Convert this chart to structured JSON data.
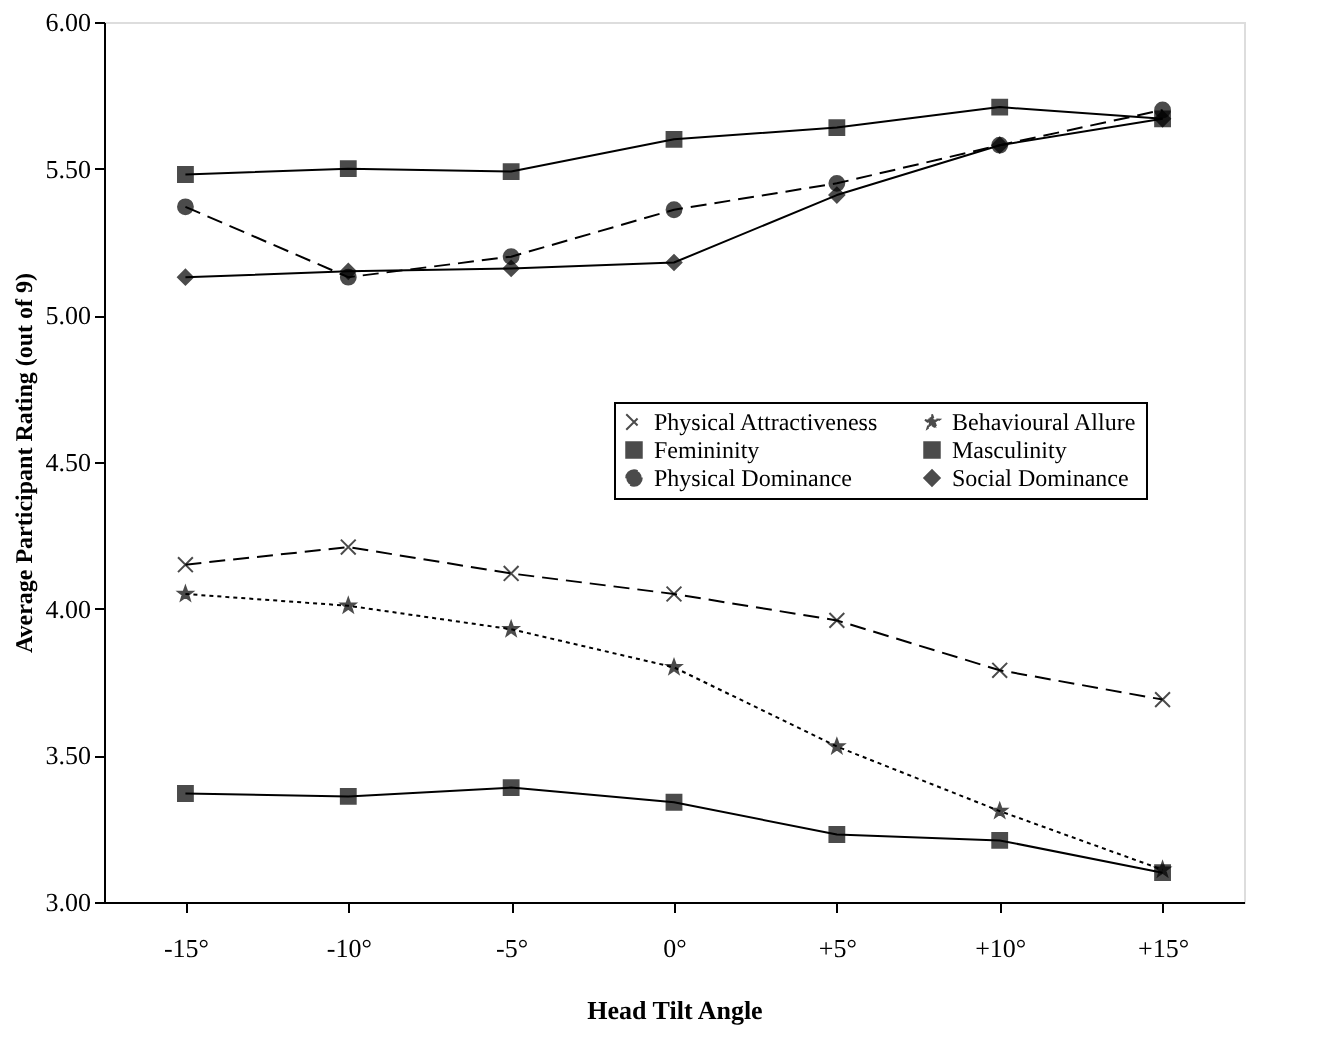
{
  "chart_data": {
    "type": "line",
    "xlabel": "Head Tilt Angle",
    "ylabel": "Average Participant Rating (out of 9)",
    "categories": [
      "-15°",
      "-10°",
      "-5°",
      "0°",
      "+5°",
      "+10°",
      "+15°"
    ],
    "ylim": [
      3.0,
      6.0
    ],
    "yticks": [
      {
        "value": 3.0,
        "label": "3.00"
      },
      {
        "value": 3.5,
        "label": "3.50"
      },
      {
        "value": 4.0,
        "label": "4.00"
      },
      {
        "value": 4.5,
        "label": "4.50"
      },
      {
        "value": 5.0,
        "label": "5.00"
      },
      {
        "value": 5.5,
        "label": "5.50"
      },
      {
        "value": 6.0,
        "label": "6.00"
      }
    ],
    "grid": false,
    "legend": "right",
    "series": [
      {
        "name": "Physical Attractiveness",
        "color": "#000000",
        "marker": "cross",
        "line_style": "dashed",
        "values": [
          4.15,
          4.21,
          4.12,
          4.05,
          3.96,
          3.79,
          3.69
        ]
      },
      {
        "name": "Behavioural Allure",
        "color": "#000000",
        "marker": "star",
        "line_style": "dotted",
        "values": [
          4.05,
          4.01,
          3.93,
          3.8,
          3.53,
          3.31,
          3.11
        ]
      },
      {
        "name": "Femininity",
        "color": "#000000",
        "marker": "square",
        "line_style": "solid",
        "values": [
          3.37,
          3.36,
          3.39,
          3.34,
          3.23,
          3.21,
          3.1
        ]
      },
      {
        "name": "Masculinity",
        "color": "#000000",
        "marker": "square",
        "line_style": "solid",
        "values": [
          5.48,
          5.5,
          5.49,
          5.6,
          5.64,
          5.71,
          5.67
        ]
      },
      {
        "name": "Physical Dominance",
        "color": "#000000",
        "marker": "circle",
        "line_style": "dashed",
        "values": [
          5.37,
          5.13,
          5.2,
          5.36,
          5.45,
          5.58,
          5.7
        ]
      },
      {
        "name": "Social Dominance",
        "color": "#000000",
        "marker": "diamond",
        "line_style": "solid",
        "values": [
          5.13,
          5.15,
          5.16,
          5.18,
          5.41,
          5.58,
          5.67
        ]
      }
    ]
  }
}
